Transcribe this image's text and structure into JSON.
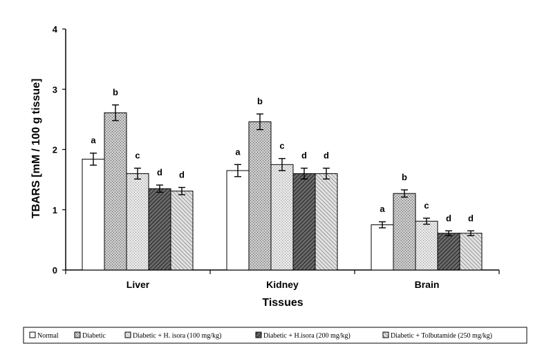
{
  "chart_data": {
    "type": "bar",
    "title": "",
    "xlabel": "Tissues",
    "ylabel": "TBARS  [mM / 100 g  tissue]",
    "ylim": [
      0,
      4
    ],
    "yticks": [
      0,
      1,
      2,
      3,
      4
    ],
    "categories": [
      "Liver",
      "Kidney",
      "Brain"
    ],
    "series": [
      {
        "name": "Normal",
        "pattern": "white",
        "values": [
          1.84,
          1.65,
          0.75
        ],
        "errors": [
          0.1,
          0.1,
          0.05
        ],
        "labels": [
          "a",
          "a",
          "a"
        ]
      },
      {
        "name": "Diabetic",
        "pattern": "dots",
        "values": [
          2.61,
          2.46,
          1.27
        ],
        "errors": [
          0.13,
          0.13,
          0.06
        ],
        "labels": [
          "b",
          "b",
          "b"
        ]
      },
      {
        "name": "Diabetic + H. isora (100 mg/kg)",
        "pattern": "light-dots",
        "values": [
          1.6,
          1.75,
          0.81
        ],
        "errors": [
          0.09,
          0.1,
          0.05
        ],
        "labels": [
          "c",
          "c",
          "c"
        ]
      },
      {
        "name": "Diabetic + H.isora (200 mg/kg)",
        "pattern": "dark-hatch",
        "values": [
          1.35,
          1.6,
          0.61
        ],
        "errors": [
          0.06,
          0.09,
          0.04
        ],
        "labels": [
          "d",
          "d",
          "d"
        ]
      },
      {
        "name": "Diabetic + Tolbutamide (250 mg/kg)",
        "pattern": "hatch",
        "values": [
          1.31,
          1.6,
          0.61
        ],
        "errors": [
          0.06,
          0.09,
          0.04
        ],
        "labels": [
          "d",
          "d",
          "d"
        ]
      }
    ],
    "grid": false,
    "legend_position": "bottom"
  }
}
